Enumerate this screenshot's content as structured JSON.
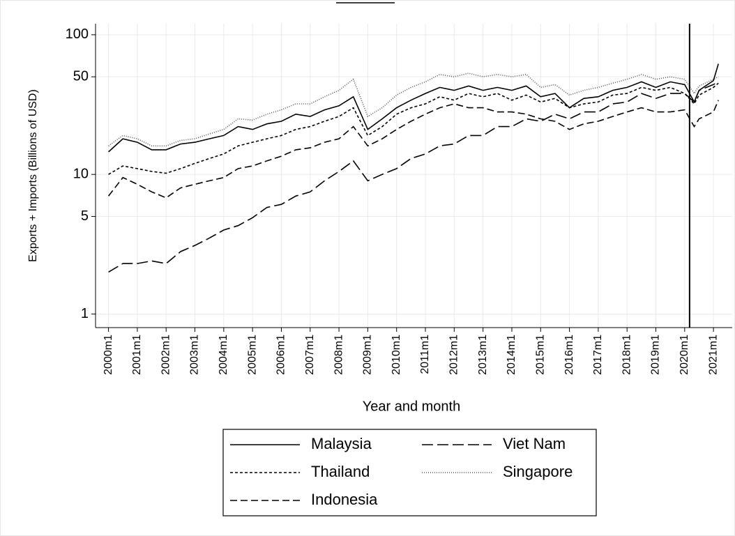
{
  "chart_data": {
    "type": "line",
    "y_label": "Exports + Imports (Billions of USD)",
    "x_label": "Year and month",
    "x": [
      2000,
      2000.5,
      2001,
      2001.5,
      2002,
      2002.5,
      2003,
      2003.5,
      2004,
      2004.5,
      2005,
      2005.5,
      2006,
      2006.5,
      2007,
      2007.5,
      2008,
      2008.5,
      2009,
      2009.5,
      2010,
      2010.5,
      2011,
      2011.5,
      2012,
      2012.5,
      2013,
      2013.5,
      2014,
      2014.5,
      2015,
      2015.5,
      2016,
      2016.5,
      2017,
      2017.5,
      2018,
      2018.5,
      2019,
      2019.5,
      2020,
      2020.33,
      2020.5,
      2021,
      2021.17
    ],
    "series": [
      {
        "name": "Malaysia",
        "color": "#000000",
        "dash": "none",
        "values": [
          14.5,
          18,
          17,
          15,
          15,
          16.5,
          17,
          18,
          19,
          22,
          21,
          23,
          24,
          27,
          26,
          29,
          31,
          36,
          21,
          25,
          30,
          34,
          38,
          42,
          40,
          43,
          40,
          42,
          40,
          43,
          36,
          38,
          30,
          35,
          36,
          40,
          42,
          46,
          42,
          46,
          44,
          33,
          40,
          47,
          62
        ]
      },
      {
        "name": "Thailand",
        "color": "#000000",
        "dash": "4,3",
        "values": [
          10,
          11.5,
          11,
          10.5,
          10.2,
          11,
          12,
          13,
          14,
          16,
          17,
          18,
          19,
          21,
          22,
          24,
          26,
          30,
          19,
          22,
          27,
          30,
          32,
          36,
          34,
          38,
          36,
          38,
          34,
          37,
          33,
          35,
          30,
          32,
          33,
          37,
          38,
          42,
          40,
          42,
          38,
          32,
          37,
          42,
          45
        ]
      },
      {
        "name": "Indonesia",
        "color": "#000000",
        "dash": "10,5",
        "values": [
          7,
          9.5,
          8.5,
          7.5,
          6.8,
          8,
          8.5,
          9,
          9.5,
          11,
          11.5,
          12.5,
          13.5,
          15,
          15.5,
          17,
          18,
          22,
          16,
          18,
          21,
          24,
          27,
          30,
          32,
          30,
          30,
          28,
          28,
          27,
          25,
          24,
          21,
          23,
          24,
          26,
          28,
          30,
          28,
          28,
          29,
          22,
          25,
          28,
          34
        ]
      },
      {
        "name": "Viet Nam",
        "color": "#000000",
        "dash": "16,6",
        "values": [
          2,
          2.3,
          2.3,
          2.4,
          2.3,
          2.8,
          3.1,
          3.5,
          4,
          4.3,
          4.9,
          5.8,
          6.1,
          7,
          7.5,
          9,
          10.5,
          12.5,
          9,
          10,
          11,
          13,
          14,
          16,
          16.5,
          19,
          19,
          22,
          22,
          25,
          24,
          27,
          25,
          28,
          28,
          32,
          33,
          38,
          35,
          38,
          38,
          33,
          40,
          44,
          46
        ]
      },
      {
        "name": "Singapore",
        "color": "#555555",
        "dash": "1,2",
        "values": [
          16,
          19,
          18,
          16,
          16,
          17.5,
          18,
          19.5,
          21,
          25,
          24.5,
          27,
          29,
          32,
          32,
          36,
          40,
          48,
          26,
          30,
          37,
          42,
          46,
          52,
          50,
          53,
          50,
          52,
          50,
          52,
          42,
          44,
          37,
          40,
          42,
          45,
          48,
          52,
          48,
          50,
          48,
          38,
          43,
          48,
          50
        ]
      }
    ],
    "xlim": [
      1999.55,
      2021.65
    ],
    "ylim": [
      0.8,
      120
    ],
    "log_y": true,
    "grid": true,
    "vline": 2020.17,
    "yticks": [
      1,
      5,
      10,
      50,
      100
    ],
    "xticks": [
      {
        "value": 2000,
        "label": "2000m1"
      },
      {
        "value": 2001,
        "label": "2001m1"
      },
      {
        "value": 2002,
        "label": "2002m1"
      },
      {
        "value": 2003,
        "label": "2003m1"
      },
      {
        "value": 2004,
        "label": "2004m1"
      },
      {
        "value": 2005,
        "label": "2005m1"
      },
      {
        "value": 2006,
        "label": "2006m1"
      },
      {
        "value": 2007,
        "label": "2007m1"
      },
      {
        "value": 2008,
        "label": "2008m1"
      },
      {
        "value": 2009,
        "label": "2009m1"
      },
      {
        "value": 2010,
        "label": "2010m1"
      },
      {
        "value": 2011,
        "label": "2011m1"
      },
      {
        "value": 2012,
        "label": "2012m1"
      },
      {
        "value": 2013,
        "label": "2013m1"
      },
      {
        "value": 2014,
        "label": "2014m1"
      },
      {
        "value": 2015,
        "label": "2015m1"
      },
      {
        "value": 2016,
        "label": "2016m1"
      },
      {
        "value": 2017,
        "label": "2017m1"
      },
      {
        "value": 2018,
        "label": "2018m1"
      },
      {
        "value": 2019,
        "label": "2019m1"
      },
      {
        "value": 2020,
        "label": "2020m1"
      },
      {
        "value": 2021,
        "label": "2021m1"
      }
    ]
  }
}
